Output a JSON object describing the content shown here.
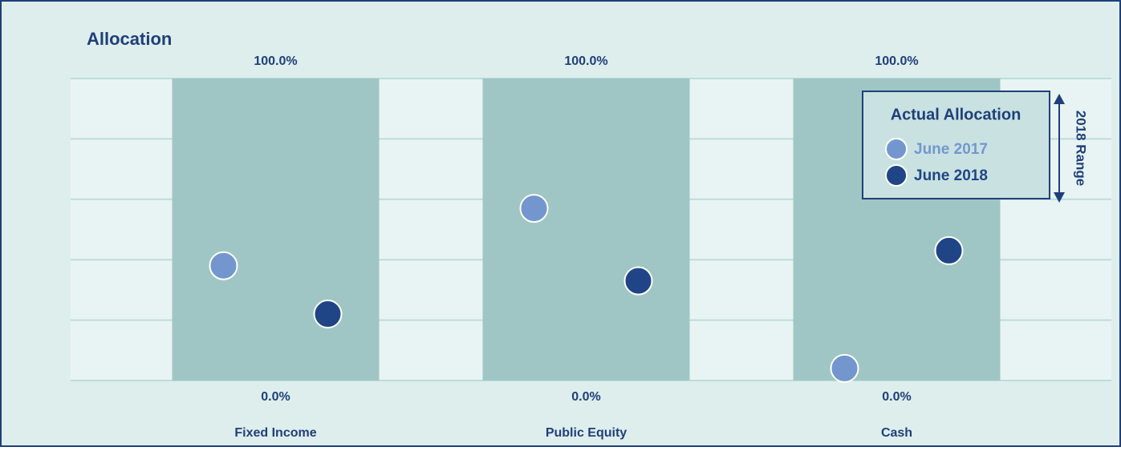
{
  "chart_data": {
    "type": "range_dot",
    "title": "Allocation",
    "categories": [
      "Fixed Income",
      "Public Equity",
      "Cash"
    ],
    "range": {
      "name": "2018 Range",
      "color": "#9fc6c4",
      "low": [
        0,
        0,
        0
      ],
      "low_labels": [
        "0.0%",
        "0.0%",
        "0.0%"
      ],
      "high": [
        100,
        100,
        100
      ],
      "high_labels": [
        "100.0%",
        "100.0%",
        "100.0%"
      ]
    },
    "legend_title": "Actual Allocation",
    "series": [
      {
        "name": "June 2017",
        "color": "#7496cf",
        "values": [
          38,
          57,
          4
        ]
      },
      {
        "name": "June 2018",
        "color": "#1f4586",
        "values": [
          22,
          33,
          43
        ]
      }
    ],
    "ylim": [
      0,
      100
    ],
    "yticks": [
      0,
      20,
      40,
      60,
      80,
      100
    ],
    "grid": true
  }
}
